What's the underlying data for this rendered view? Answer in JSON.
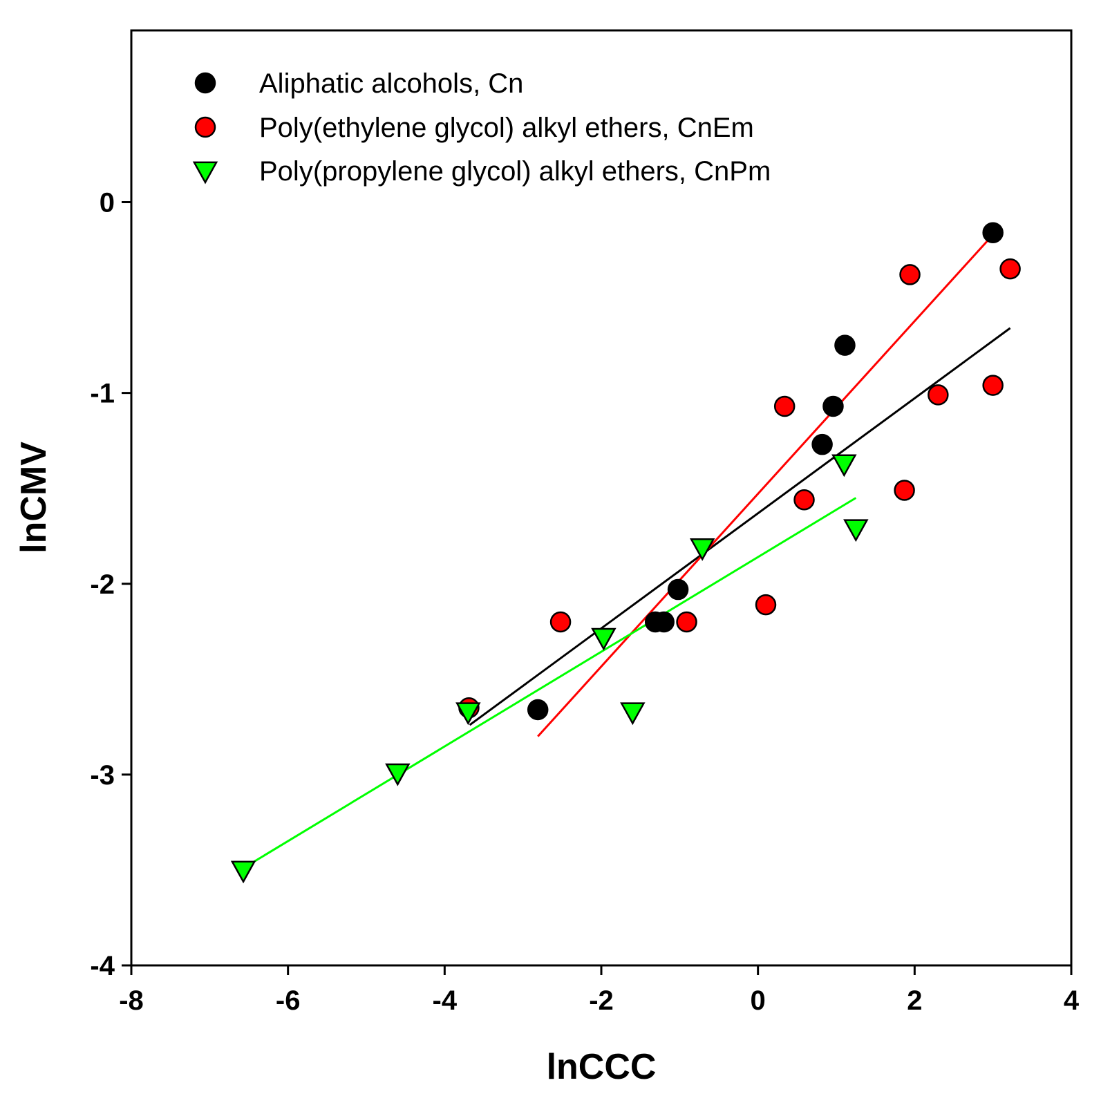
{
  "chart_data": {
    "type": "scatter",
    "title": "",
    "xlabel": "lnCCC",
    "ylabel": "lnCMV",
    "xlim": [
      -8,
      4
    ],
    "ylim": [
      -4,
      0.9
    ],
    "xticks": [
      -8,
      -6,
      -4,
      -2,
      0,
      2,
      4
    ],
    "yticks": [
      -4,
      -3,
      -2,
      -1,
      0
    ],
    "grid": false,
    "legend_position": "top-left",
    "series": [
      {
        "name": "Aliphatic alcohols, Cn",
        "marker": "circle",
        "color": "#000000",
        "line_color": "#000000",
        "points": [
          {
            "x": -2.81,
            "y": -2.66
          },
          {
            "x": -1.31,
            "y": -2.2
          },
          {
            "x": -1.2,
            "y": -2.2
          },
          {
            "x": -1.02,
            "y": -2.03
          },
          {
            "x": 0.82,
            "y": -1.27
          },
          {
            "x": 0.96,
            "y": -1.07
          },
          {
            "x": 1.11,
            "y": -0.75
          },
          {
            "x": 3.0,
            "y": -0.16
          }
        ],
        "fit": {
          "x": [
            -3.68,
            3.22
          ],
          "y": [
            -2.74,
            -0.66
          ]
        }
      },
      {
        "name": "Poly(ethylene glycol) alkyl ethers, CnEm",
        "marker": "circle",
        "color": "#ff0000",
        "line_color": "#ff0000",
        "points": [
          {
            "x": -3.69,
            "y": -2.65
          },
          {
            "x": -2.52,
            "y": -2.2
          },
          {
            "x": -0.91,
            "y": -2.2
          },
          {
            "x": 0.1,
            "y": -2.11
          },
          {
            "x": 0.34,
            "y": -1.07
          },
          {
            "x": 0.59,
            "y": -1.56
          },
          {
            "x": 1.87,
            "y": -1.51
          },
          {
            "x": 1.94,
            "y": -0.38
          },
          {
            "x": 2.3,
            "y": -1.01
          },
          {
            "x": 3.0,
            "y": -0.96
          },
          {
            "x": 3.22,
            "y": -0.35
          }
        ],
        "fit": {
          "x": [
            -2.81,
            2.98
          ],
          "y": [
            -2.8,
            -0.18
          ]
        }
      },
      {
        "name": "Poly(propylene glycol) alkyl ethers, CnPm",
        "marker": "triangle-down",
        "color": "#00ff00",
        "line_color": "#00ff00",
        "points": [
          {
            "x": -6.57,
            "y": -3.5
          },
          {
            "x": -4.6,
            "y": -2.99
          },
          {
            "x": -3.7,
            "y": -2.67
          },
          {
            "x": -1.97,
            "y": -2.28
          },
          {
            "x": -1.6,
            "y": -2.67
          },
          {
            "x": -0.71,
            "y": -1.81
          },
          {
            "x": 1.1,
            "y": -1.37
          },
          {
            "x": 1.25,
            "y": -1.71
          }
        ],
        "fit": {
          "x": [
            -6.57,
            1.25
          ],
          "y": [
            -3.49,
            -1.55
          ]
        }
      }
    ]
  }
}
